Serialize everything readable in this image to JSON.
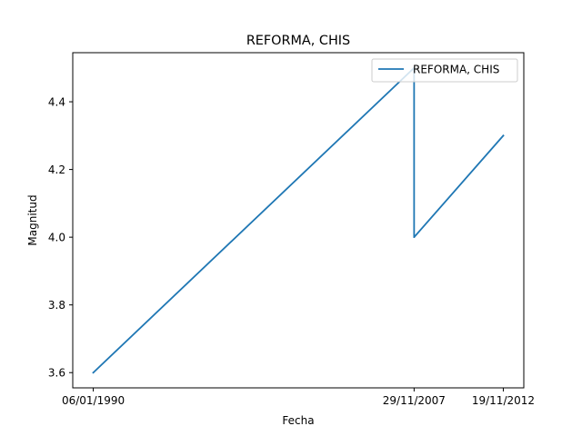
{
  "chart_data": {
    "type": "line",
    "title": "REFORMA, CHIS",
    "xlabel": "Fecha",
    "ylabel": "Magnitud",
    "x": [
      "06/01/1990",
      "29/11/2007",
      "29/11/2007",
      "19/11/2012"
    ],
    "x_ticks": [
      "06/01/1990",
      "29/11/2007",
      "19/11/2012"
    ],
    "ylim": [
      3.555,
      4.545
    ],
    "y_ticks": [
      3.6,
      3.8,
      4.0,
      4.2,
      4.4
    ],
    "y_tick_labels": [
      "3.6",
      "3.8",
      "4.0",
      "4.2",
      "4.4"
    ],
    "series": [
      {
        "name": "REFORMA, CHIS",
        "values": [
          3.6,
          4.5,
          4.0,
          4.3
        ],
        "color": "#1f77b4"
      }
    ],
    "legend": "top-right",
    "grid": false
  }
}
